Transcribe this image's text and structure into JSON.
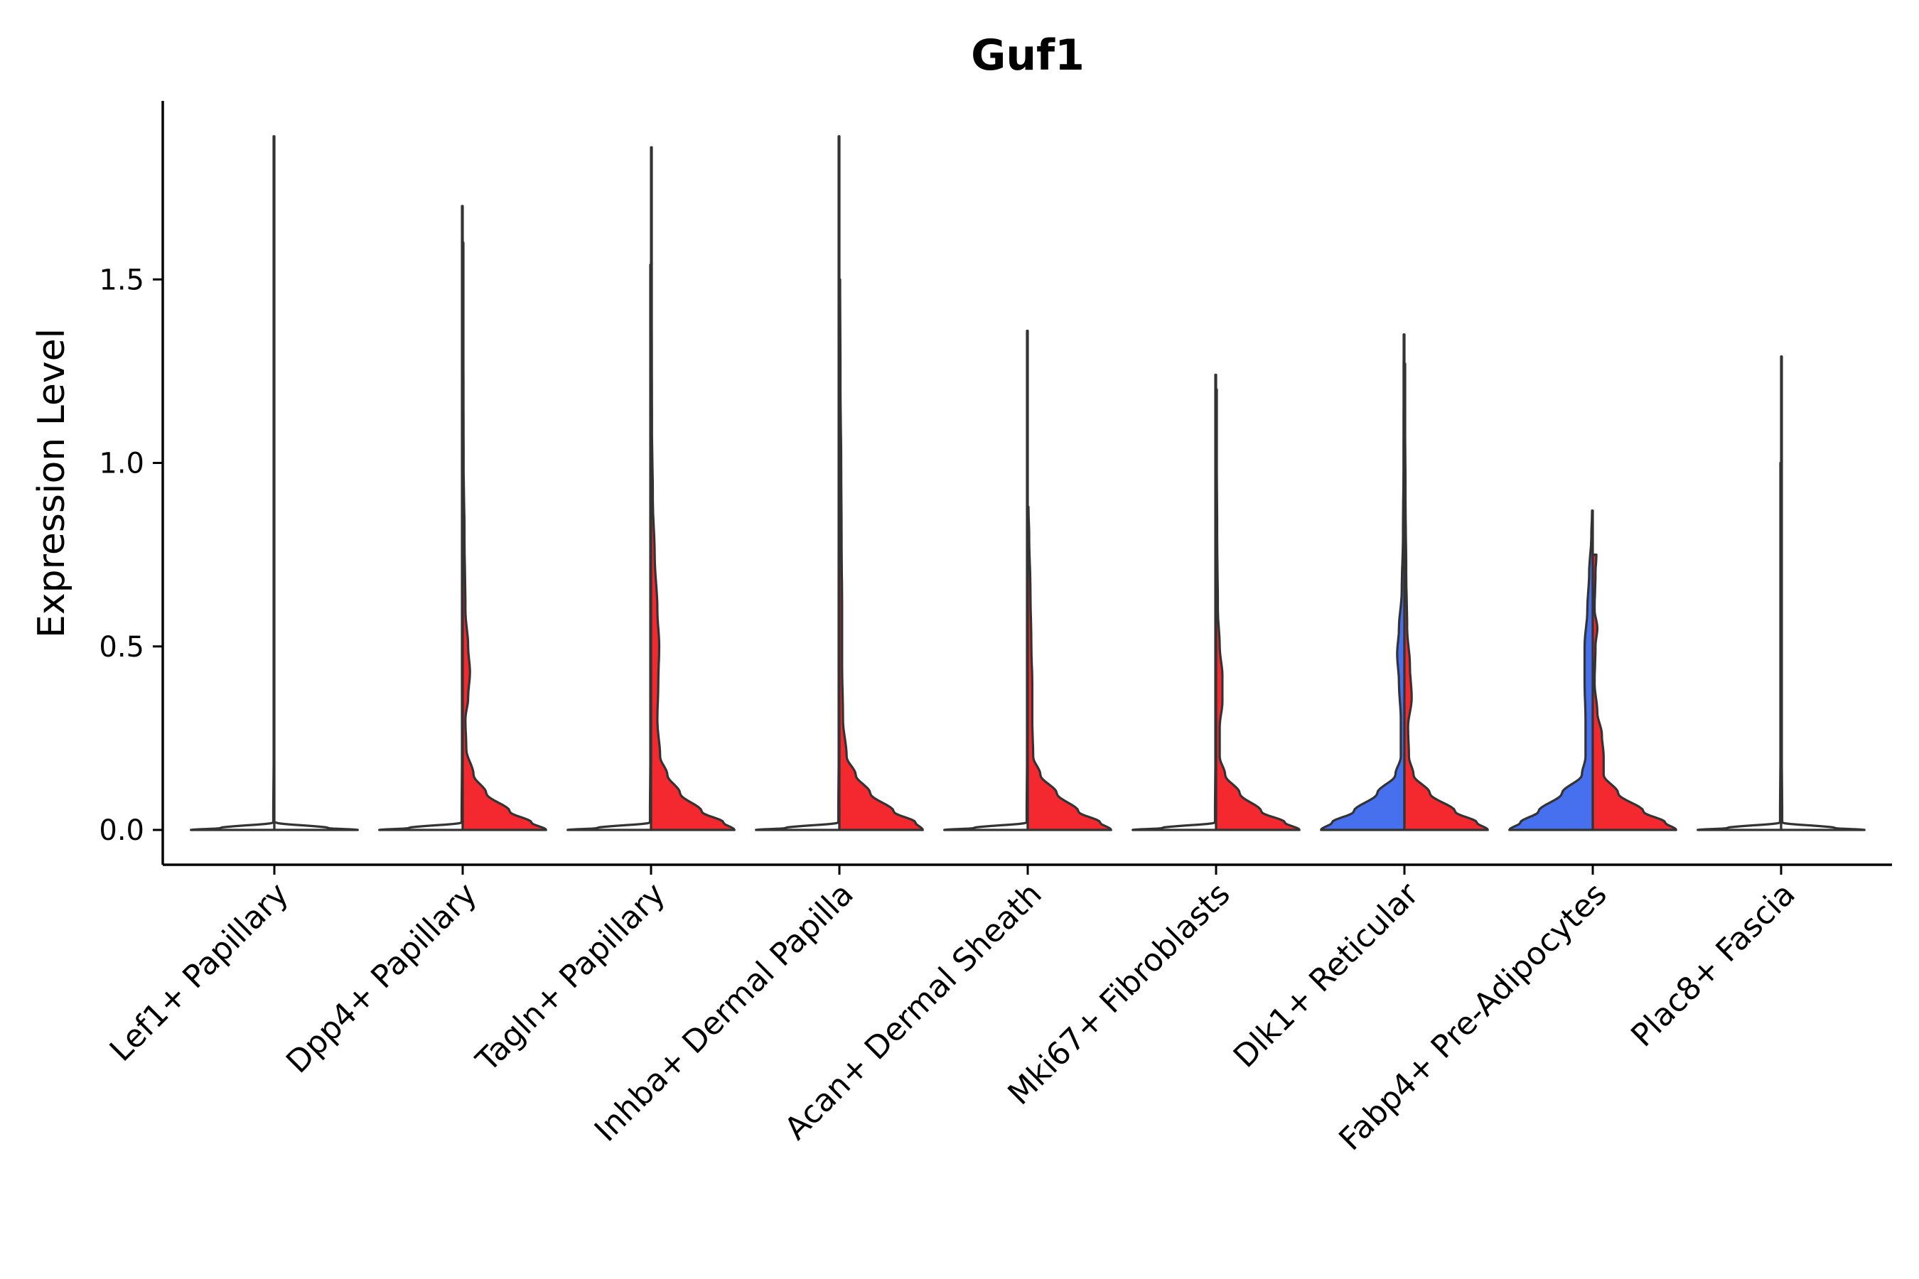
{
  "chart_data": {
    "type": "violin",
    "title": "Guf1",
    "xlabel": "",
    "ylabel": "Expression Level",
    "ylim": [
      -0.09,
      1.99
    ],
    "yticks": [
      0.0,
      0.5,
      1.0,
      1.5
    ],
    "ytick_labels": [
      "0.0",
      "0.5",
      "1.0",
      "1.5"
    ],
    "colors": {
      "Control": "#F4292F",
      "Treated": "#4670EE",
      "zero": "#ffffff"
    },
    "categories": [
      "Lef1+ Papillary",
      "Dpp4+ Papillary",
      "Tagln+ Papillary",
      "Inhba+ Dermal Papilla",
      "Acan+ Dermal Sheath",
      "Mki67+ Fibroblasts",
      "Dlk1+ Reticular",
      "Fabp4+ Pre-Adipocytes",
      "Plac8+ Fascia"
    ],
    "violins": [
      {
        "category": "Lef1+ Papillary",
        "side": "left",
        "fill": "zero",
        "max": 1.89,
        "profile": [
          [
            0,
            0.46
          ],
          [
            0.005,
            0.3
          ],
          [
            0.02,
            0.006
          ],
          [
            0.2,
            0.004
          ],
          [
            1.89,
            0.004
          ]
        ]
      },
      {
        "category": "Lef1+ Papillary",
        "side": "right",
        "fill": "zero",
        "max": 0.0,
        "profile": [
          [
            0,
            0.46
          ],
          [
            0.005,
            0.3
          ],
          [
            0.02,
            0.01
          ]
        ]
      },
      {
        "category": "Dpp4+ Papillary",
        "side": "left",
        "fill": "zero",
        "max": 1.7,
        "profile": [
          [
            0,
            0.46
          ],
          [
            0.005,
            0.3
          ],
          [
            0.02,
            0.006
          ],
          [
            0.2,
            0.004
          ],
          [
            1.7,
            0.004
          ]
        ]
      },
      {
        "category": "Dpp4+ Papillary",
        "side": "right",
        "fill": "Control",
        "max": 1.6,
        "profile": [
          [
            0,
            0.46
          ],
          [
            0.02,
            0.38
          ],
          [
            0.05,
            0.26
          ],
          [
            0.1,
            0.13
          ],
          [
            0.15,
            0.06
          ],
          [
            0.22,
            0.02
          ],
          [
            0.3,
            0.015
          ],
          [
            0.36,
            0.03
          ],
          [
            0.43,
            0.04
          ],
          [
            0.5,
            0.03
          ],
          [
            0.6,
            0.015
          ],
          [
            0.8,
            0.01
          ],
          [
            1.0,
            0.005
          ],
          [
            1.3,
            0.004
          ],
          [
            1.6,
            0.004
          ]
        ]
      },
      {
        "category": "Tagln+ Papillary",
        "side": "left",
        "fill": "zero",
        "max": 1.54,
        "profile": [
          [
            0,
            0.46
          ],
          [
            0.005,
            0.3
          ],
          [
            0.02,
            0.006
          ],
          [
            0.2,
            0.004
          ],
          [
            1.54,
            0.004
          ]
        ]
      },
      {
        "category": "Tagln+ Papillary",
        "side": "right",
        "fill": "Control",
        "max": 1.86,
        "profile": [
          [
            0,
            0.46
          ],
          [
            0.02,
            0.4
          ],
          [
            0.05,
            0.28
          ],
          [
            0.1,
            0.16
          ],
          [
            0.15,
            0.09
          ],
          [
            0.2,
            0.05
          ],
          [
            0.3,
            0.035
          ],
          [
            0.4,
            0.04
          ],
          [
            0.5,
            0.045
          ],
          [
            0.6,
            0.035
          ],
          [
            0.75,
            0.02
          ],
          [
            0.9,
            0.01
          ],
          [
            1.1,
            0.005
          ],
          [
            1.4,
            0.004
          ],
          [
            1.86,
            0.004
          ]
        ]
      },
      {
        "category": "Inhba+ Dermal Papilla",
        "side": "left",
        "fill": "zero",
        "max": 1.89,
        "profile": [
          [
            0,
            0.46
          ],
          [
            0.005,
            0.3
          ],
          [
            0.02,
            0.006
          ],
          [
            0.2,
            0.004
          ],
          [
            1.89,
            0.004
          ]
        ]
      },
      {
        "category": "Inhba+ Dermal Papilla",
        "side": "right",
        "fill": "Control",
        "max": 1.5,
        "profile": [
          [
            0,
            0.46
          ],
          [
            0.02,
            0.42
          ],
          [
            0.05,
            0.3
          ],
          [
            0.1,
            0.17
          ],
          [
            0.15,
            0.09
          ],
          [
            0.2,
            0.04
          ],
          [
            0.3,
            0.02
          ],
          [
            0.45,
            0.015
          ],
          [
            0.6,
            0.015
          ],
          [
            0.8,
            0.012
          ],
          [
            1.0,
            0.01
          ],
          [
            1.2,
            0.006
          ],
          [
            1.5,
            0.004
          ]
        ]
      },
      {
        "category": "Acan+ Dermal Sheath",
        "side": "left",
        "fill": "zero",
        "max": 1.36,
        "profile": [
          [
            0,
            0.46
          ],
          [
            0.005,
            0.3
          ],
          [
            0.02,
            0.006
          ],
          [
            0.2,
            0.004
          ],
          [
            1.36,
            0.004
          ]
        ]
      },
      {
        "category": "Acan+ Dermal Sheath",
        "side": "right",
        "fill": "Control",
        "max": 0.88,
        "profile": [
          [
            0,
            0.46
          ],
          [
            0.02,
            0.4
          ],
          [
            0.05,
            0.28
          ],
          [
            0.1,
            0.16
          ],
          [
            0.15,
            0.07
          ],
          [
            0.2,
            0.03
          ],
          [
            0.3,
            0.025
          ],
          [
            0.4,
            0.025
          ],
          [
            0.5,
            0.02
          ],
          [
            0.65,
            0.015
          ],
          [
            0.8,
            0.008
          ],
          [
            0.88,
            0.004
          ]
        ]
      },
      {
        "category": "Mki67+ Fibroblasts",
        "side": "left",
        "fill": "zero",
        "max": 1.24,
        "profile": [
          [
            0,
            0.46
          ],
          [
            0.005,
            0.3
          ],
          [
            0.02,
            0.006
          ],
          [
            0.2,
            0.004
          ],
          [
            1.24,
            0.004
          ]
        ]
      },
      {
        "category": "Mki67+ Fibroblasts",
        "side": "right",
        "fill": "Control",
        "max": 1.2,
        "profile": [
          [
            0,
            0.46
          ],
          [
            0.02,
            0.38
          ],
          [
            0.05,
            0.25
          ],
          [
            0.1,
            0.13
          ],
          [
            0.15,
            0.05
          ],
          [
            0.2,
            0.02
          ],
          [
            0.28,
            0.02
          ],
          [
            0.35,
            0.035
          ],
          [
            0.42,
            0.035
          ],
          [
            0.5,
            0.02
          ],
          [
            0.6,
            0.01
          ],
          [
            0.8,
            0.006
          ],
          [
            1.0,
            0.004
          ],
          [
            1.2,
            0.004
          ]
        ]
      },
      {
        "category": "Dlk1+ Reticular",
        "side": "left",
        "fill": "Treated",
        "max": 1.35,
        "profile": [
          [
            0,
            0.46
          ],
          [
            0.02,
            0.4
          ],
          [
            0.05,
            0.28
          ],
          [
            0.1,
            0.15
          ],
          [
            0.15,
            0.05
          ],
          [
            0.2,
            0.02
          ],
          [
            0.3,
            0.02
          ],
          [
            0.4,
            0.03
          ],
          [
            0.48,
            0.04
          ],
          [
            0.55,
            0.03
          ],
          [
            0.65,
            0.015
          ],
          [
            0.8,
            0.008
          ],
          [
            1.0,
            0.005
          ],
          [
            1.35,
            0.004
          ]
        ]
      },
      {
        "category": "Dlk1+ Reticular",
        "side": "right",
        "fill": "Control",
        "max": 1.27,
        "profile": [
          [
            0,
            0.46
          ],
          [
            0.02,
            0.4
          ],
          [
            0.05,
            0.28
          ],
          [
            0.1,
            0.14
          ],
          [
            0.15,
            0.05
          ],
          [
            0.2,
            0.025
          ],
          [
            0.28,
            0.02
          ],
          [
            0.36,
            0.04
          ],
          [
            0.45,
            0.03
          ],
          [
            0.55,
            0.015
          ],
          [
            0.7,
            0.01
          ],
          [
            0.9,
            0.006
          ],
          [
            1.1,
            0.004
          ],
          [
            1.27,
            0.004
          ]
        ]
      },
      {
        "category": "Fabp4+ Pre-Adipocytes",
        "side": "left",
        "fill": "Treated",
        "max": 0.87,
        "profile": [
          [
            0,
            0.46
          ],
          [
            0.02,
            0.4
          ],
          [
            0.05,
            0.3
          ],
          [
            0.1,
            0.17
          ],
          [
            0.15,
            0.06
          ],
          [
            0.2,
            0.04
          ],
          [
            0.3,
            0.04
          ],
          [
            0.4,
            0.045
          ],
          [
            0.5,
            0.045
          ],
          [
            0.6,
            0.03
          ],
          [
            0.7,
            0.02
          ],
          [
            0.8,
            0.008
          ],
          [
            0.87,
            0.004
          ]
        ]
      },
      {
        "category": "Fabp4+ Pre-Adipocytes",
        "side": "right",
        "fill": "Control",
        "max": 0.75,
        "profile": [
          [
            0,
            0.46
          ],
          [
            0.02,
            0.4
          ],
          [
            0.05,
            0.28
          ],
          [
            0.1,
            0.14
          ],
          [
            0.15,
            0.06
          ],
          [
            0.2,
            0.06
          ],
          [
            0.26,
            0.05
          ],
          [
            0.32,
            0.025
          ],
          [
            0.4,
            0.01
          ],
          [
            0.5,
            0.015
          ],
          [
            0.55,
            0.025
          ],
          [
            0.6,
            0.01
          ],
          [
            0.7,
            0.015
          ],
          [
            0.75,
            0.02
          ]
        ]
      },
      {
        "category": "Plac8+ Fascia",
        "side": "left",
        "fill": "zero",
        "max": 1.0,
        "profile": [
          [
            0,
            0.46
          ],
          [
            0.005,
            0.3
          ],
          [
            0.02,
            0.006
          ],
          [
            0.2,
            0.004
          ],
          [
            1.0,
            0.004
          ]
        ]
      },
      {
        "category": "Plac8+ Fascia",
        "side": "right",
        "fill": "zero",
        "max": 1.29,
        "profile": [
          [
            0,
            0.46
          ],
          [
            0.005,
            0.3
          ],
          [
            0.02,
            0.006
          ],
          [
            0.2,
            0.004
          ],
          [
            1.29,
            0.004
          ]
        ]
      }
    ]
  }
}
